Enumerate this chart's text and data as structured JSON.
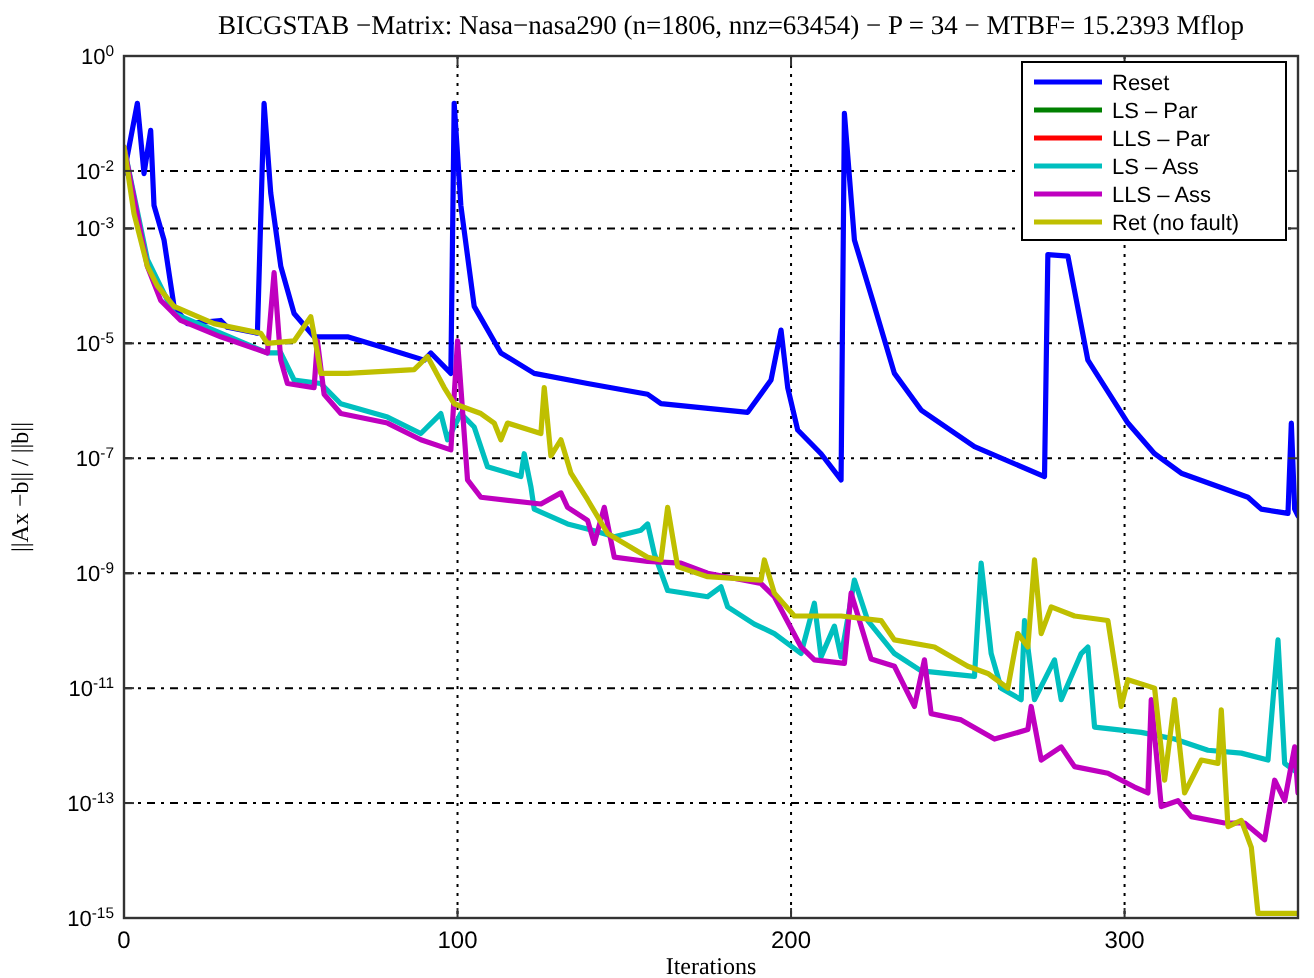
{
  "chart_data": {
    "type": "line",
    "title": "BICGSTAB −Matrix: Nasa−nasa290 (n=1806, nnz=63454) − P = 34 − MTBF= 15.2393 Mflop",
    "xlabel": "Iterations",
    "ylabel": "||Ax −b|| / ||b||",
    "log": "y",
    "grid": true,
    "legend": "top right",
    "line_style": "solid",
    "marker": "none",
    "xlim": [
      0,
      352
    ],
    "xticks": [
      0,
      100,
      200,
      300
    ],
    "ylim": [
      1e-15,
      1
    ],
    "yticks": [
      {
        "value": 1,
        "label": "10$^{0}$"
      },
      {
        "value": 0.01,
        "label": "10$^{-2}$"
      },
      {
        "value": 0.001,
        "label": "10$^{-3}$"
      },
      {
        "value": 1e-05,
        "label": "10$^{-5}$"
      },
      {
        "value": 1e-07,
        "label": "10$^{-7}$"
      },
      {
        "value": 1e-09,
        "label": "10$^{-9}$"
      },
      {
        "value": 1e-11,
        "label": "10$^{-11}$"
      },
      {
        "value": 1e-13,
        "label": "10$^{-13}$"
      },
      {
        "value": 1e-15,
        "label": "10$^{-15}$"
      }
    ],
    "series": [
      {
        "name": "Reset",
        "color": "#0000ff",
        "x": [
          0,
          4,
          6,
          8,
          9,
          12,
          15,
          19,
          29,
          31,
          40,
          42,
          44,
          47,
          51,
          57,
          67,
          77,
          90,
          92,
          98,
          99,
          101,
          105,
          113,
          123,
          139,
          157,
          161,
          187,
          194,
          197,
          199,
          202,
          209,
          215,
          216,
          219,
          225,
          231,
          239,
          255,
          276,
          277,
          283,
          289,
          301,
          309,
          317,
          337,
          341,
          349,
          350,
          351,
          352
        ],
        "values": [
          0.009,
          0.15,
          0.009,
          0.051,
          0.0025,
          0.00063,
          4.4e-05,
          2.2e-05,
          2.5e-05,
          1.9e-05,
          1.5e-05,
          0.15,
          0.0041,
          0.00022,
          3.3e-05,
          1.3e-05,
          1.3e-05,
          8.7e-06,
          5.1e-06,
          6.8e-06,
          3e-06,
          0.15,
          0.0025,
          4.4e-05,
          6.8e-06,
          3e-06,
          2e-06,
          1.3e-06,
          8.9e-07,
          6.3e-07,
          2.3e-06,
          1.7e-05,
          1.7e-06,
          3.1e-07,
          1.2e-07,
          4.2e-08,
          0.1,
          0.00063,
          4.4e-05,
          3e-06,
          6.9e-07,
          1.6e-07,
          4.8e-08,
          0.00035,
          0.00033,
          5.1e-06,
          4.1e-07,
          1.2e-07,
          5.5e-08,
          2.1e-08,
          1.3e-08,
          1.1e-08,
          4.1e-07,
          1.3e-08,
          1e-08
        ]
      },
      {
        "name": "LS – Par",
        "color": "#008000"
      },
      {
        "name": "LLS – Par",
        "color": "#ff0000"
      },
      {
        "name": "LS – Ass",
        "color": "#00bfbf",
        "x": [
          0,
          7,
          15,
          29,
          43,
          47,
          51,
          59,
          65,
          79,
          89,
          95,
          97,
          101,
          105,
          109,
          119,
          120,
          122,
          123,
          133,
          141,
          147,
          155,
          157,
          159,
          163,
          175,
          179,
          181,
          189,
          195,
          203,
          207,
          209,
          213,
          215,
          219,
          223,
          231,
          239,
          255,
          257,
          260,
          263,
          269,
          270,
          273,
          279,
          281,
          287,
          289,
          291,
          305,
          315,
          325,
          335,
          343,
          346,
          348,
          352
        ],
        "values": [
          0.026,
          0.00029,
          3.3e-05,
          1.5e-05,
          6.8e-06,
          6.8e-06,
          2.3e-06,
          2e-06,
          8.9e-07,
          5.2e-07,
          2.7e-07,
          6e-07,
          2.1e-07,
          6e-07,
          3.5e-07,
          7.1e-08,
          4.8e-08,
          1.2e-07,
          3.2e-08,
          1.3e-08,
          7.2e-09,
          5.5e-09,
          4.3e-09,
          5.6e-09,
          7.2e-09,
          2.2e-09,
          5e-10,
          3.9e-10,
          5.8e-10,
          2.6e-10,
          1.3e-10,
          8.9e-11,
          4e-11,
          3e-10,
          3.5e-11,
          1.2e-10,
          3.5e-11,
          7.6e-10,
          1.5e-10,
          4e-11,
          2e-11,
          1.6e-11,
          1.5e-09,
          4e-11,
          1e-11,
          6.3e-12,
          1.5e-10,
          6.3e-12,
          3.1e-11,
          6.3e-12,
          4e-11,
          5.2e-11,
          2.1e-12,
          1.7e-12,
          1.3e-12,
          8.3e-13,
          7.4e-13,
          5.6e-13,
          6.9e-11,
          4.9e-13,
          3.3e-13
        ]
      },
      {
        "name": "LLS – Ass",
        "color": "#bf00bf",
        "x": [
          0,
          7,
          11,
          17,
          29,
          43,
          45,
          47,
          49,
          57,
          58,
          60,
          65,
          79,
          89,
          98,
          100,
          103,
          107,
          125,
          131,
          133,
          139,
          141,
          144,
          147,
          157,
          167,
          175,
          191,
          195,
          203,
          207,
          216,
          218,
          221,
          224,
          231,
          237,
          240,
          242,
          251,
          261,
          271,
          272,
          275,
          281,
          285,
          295,
          303,
          307,
          308,
          311,
          316,
          320,
          330,
          336,
          342,
          345,
          348,
          351,
          352
        ],
        "values": [
          0.026,
          0.00022,
          5.6e-05,
          2.5e-05,
          1.3e-05,
          6.8e-06,
          0.00017,
          5.1e-06,
          2e-06,
          1.7e-06,
          1.1e-05,
          1.3e-06,
          6e-07,
          4.1e-07,
          2.1e-07,
          1.4e-07,
          1.1e-05,
          4.2e-08,
          2.1e-08,
          1.6e-08,
          2.5e-08,
          1.4e-08,
          8.3e-09,
          3.3e-09,
          1.4e-08,
          1.9e-09,
          1.6e-09,
          1.5e-09,
          1e-09,
          6.6e-10,
          3.9e-10,
          5.2e-11,
          3.1e-11,
          2.7e-11,
          4.5e-10,
          1.2e-10,
          3.2e-11,
          2.4e-11,
          4.8e-12,
          3.1e-11,
          3.6e-12,
          2.8e-12,
          1.3e-12,
          1.9e-12,
          4.8e-12,
          5.6e-13,
          9.5e-13,
          4.3e-13,
          3.3e-13,
          1.9e-13,
          1.5e-13,
          6.3e-12,
          8.7e-14,
          1.1e-13,
          5.8e-14,
          4.5e-14,
          4.5e-14,
          2.3e-14,
          2.5e-13,
          1.1e-13,
          9.5e-13,
          1.5e-13
        ]
      },
      {
        "name": "Ret (no fault)",
        "color": "#bfbf00",
        "x": [
          0,
          3,
          7,
          10,
          15,
          27,
          41,
          43,
          51,
          56,
          58,
          59,
          67,
          87,
          91,
          96,
          99,
          107,
          111,
          113,
          115,
          125,
          126,
          128,
          131,
          134,
          139,
          145,
          157,
          161,
          163,
          166,
          175,
          191,
          192,
          195,
          201,
          215,
          227,
          231,
          243,
          253,
          259,
          265,
          268,
          271,
          273,
          275,
          278,
          285,
          295,
          299,
          301,
          309,
          312,
          315,
          318,
          323,
          328,
          329,
          331,
          335,
          338,
          340,
          352
        ],
        "values": [
          0.026,
          0.0018,
          0.00022,
          0.0001,
          4.4e-05,
          2.2e-05,
          1.5e-05,
          1e-05,
          1.1e-05,
          2.9e-05,
          6.8e-06,
          3e-06,
          3e-06,
          3.5e-06,
          5.9e-06,
          1.7e-06,
          8.9e-07,
          6e-07,
          4.1e-07,
          2.1e-07,
          4.1e-07,
          2.7e-07,
          1.7e-06,
          1.1e-07,
          2.1e-07,
          5.5e-08,
          1.9e-08,
          4.9e-09,
          1.9e-09,
          1.7e-09,
          1.4e-08,
          1.3e-09,
          8.7e-10,
          7.6e-10,
          1.7e-09,
          4.5e-10,
          1.8e-10,
          1.8e-10,
          1.5e-10,
          6.9e-11,
          5.2e-11,
          2.4e-11,
          1.8e-11,
          1e-11,
          8.9e-11,
          5.2e-11,
          1.7e-09,
          8.9e-11,
          2.6e-10,
          1.8e-10,
          1.5e-10,
          4.8e-12,
          1.4e-11,
          1e-11,
          2.5e-13,
          6.3e-12,
          1.5e-13,
          5.6e-13,
          4.9e-13,
          4.2e-12,
          3.9e-14,
          5e-14,
          1.7e-14,
          1.2e-15,
          1.2e-15
        ]
      }
    ]
  }
}
